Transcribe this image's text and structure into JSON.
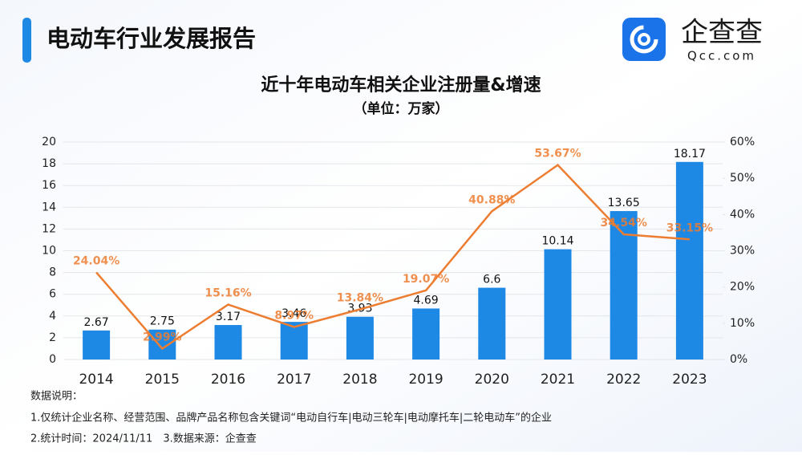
{
  "header": {
    "title": "电动车行业发展报告",
    "logo_text": "企查查",
    "logo_url": "Qcc.com"
  },
  "chart_data": {
    "type": "combo",
    "title": "近十年电动车相关企业注册量&增速",
    "subtitle": "（单位：万家）",
    "categories": [
      "2014",
      "2015",
      "2016",
      "2017",
      "2018",
      "2019",
      "2020",
      "2021",
      "2022",
      "2023"
    ],
    "series": [
      {
        "name": "企业注册量",
        "type": "bar",
        "color": "#1e88e5",
        "values": [
          2.67,
          2.75,
          3.17,
          3.46,
          3.93,
          4.69,
          6.6,
          10.14,
          13.65,
          18.17
        ]
      },
      {
        "name": "增速",
        "type": "line",
        "axis": "y2",
        "color": "#ed7d31",
        "values": [
          24.04,
          2.99,
          15.16,
          8.97,
          13.84,
          19.07,
          40.88,
          53.67,
          34.54,
          33.15
        ],
        "value_labels": [
          "24.04%",
          "2.99%",
          "15.16%",
          "8.97%",
          "13.84%",
          "19.07%",
          "40.88%",
          "53.67%",
          "34.54%",
          "33.15%"
        ]
      }
    ],
    "ylim": [
      0,
      20
    ],
    "yticks": [
      0,
      2,
      4,
      6,
      8,
      10,
      12,
      14,
      16,
      18,
      20
    ],
    "y2lim": [
      0,
      60
    ],
    "y2ticks": [
      {
        "value": 0,
        "label": "0%"
      },
      {
        "value": 10,
        "label": "10%"
      },
      {
        "value": 20,
        "label": "20%"
      },
      {
        "value": 30,
        "label": "30%"
      },
      {
        "value": 40,
        "label": "40%"
      },
      {
        "value": 50,
        "label": "50%"
      },
      {
        "value": 60,
        "label": "60%"
      }
    ],
    "grid": true
  },
  "notes": [
    "数据说明：",
    "1.仅统计企业名称、经营范围、品牌产品名称包含关键词“电动自行车|电动三轮车|电动摩托车|二轮电动车”的企业",
    "2.统计时间：2024/11/11　3.数据来源：企查查"
  ]
}
